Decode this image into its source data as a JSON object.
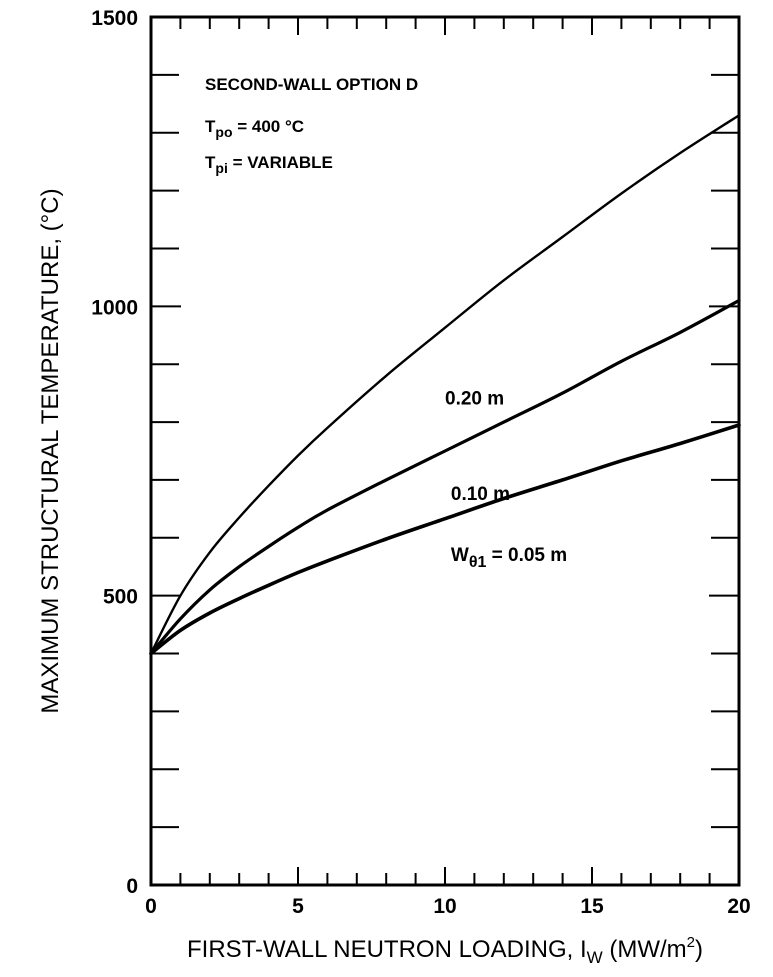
{
  "chart_data": {
    "type": "line",
    "title": "",
    "xlabel": "FIRST-WALL NEUTRON LOADING, I",
    "xlabel_sub": "W",
    "xlabel_units": " (MW/m",
    "xlabel_sup": "2",
    "xlabel_close": ")",
    "ylabel": "MAXIMUM STRUCTURAL TEMPERATURE, (°C)",
    "xlim": [
      0,
      20
    ],
    "ylim": [
      0,
      1500
    ],
    "xticks": [
      0,
      5,
      10,
      15,
      20
    ],
    "yticks": [
      0,
      500,
      1000,
      1500
    ],
    "annotations": {
      "line1": "SECOND-WALL OPTION D",
      "line2_main": "T",
      "line2_sub": "po",
      "line2_rest": " = 400 °C",
      "line3_main": "T",
      "line3_sub": "pi",
      "line3_rest": " = VARIABLE"
    },
    "series": [
      {
        "label": "0.20 m",
        "label_at": [
          10.0,
          830
        ],
        "x": [
          0,
          1,
          2,
          3,
          4,
          5,
          6,
          8,
          10,
          12,
          14,
          16,
          18,
          20
        ],
        "y": [
          400,
          500,
          575,
          635,
          690,
          742,
          790,
          880,
          963,
          1045,
          1120,
          1195,
          1265,
          1330
        ]
      },
      {
        "label": "0.10 m",
        "label_at": [
          10.2,
          665
        ],
        "x": [
          0,
          1,
          2,
          3,
          4,
          5,
          6,
          8,
          10,
          12,
          14,
          16,
          18,
          20
        ],
        "y": [
          400,
          460,
          510,
          550,
          585,
          618,
          648,
          700,
          750,
          800,
          850,
          905,
          955,
          1010
        ]
      },
      {
        "label_main": "W",
        "label_sub": "θ1",
        "label_rest": " = 0.05 m",
        "label_at": [
          10.2,
          560
        ],
        "x": [
          0,
          1,
          2,
          3,
          4,
          5,
          6,
          8,
          10,
          12,
          14,
          16,
          18,
          20
        ],
        "y": [
          400,
          440,
          470,
          495,
          518,
          540,
          560,
          598,
          633,
          668,
          700,
          733,
          763,
          795
        ]
      }
    ]
  }
}
